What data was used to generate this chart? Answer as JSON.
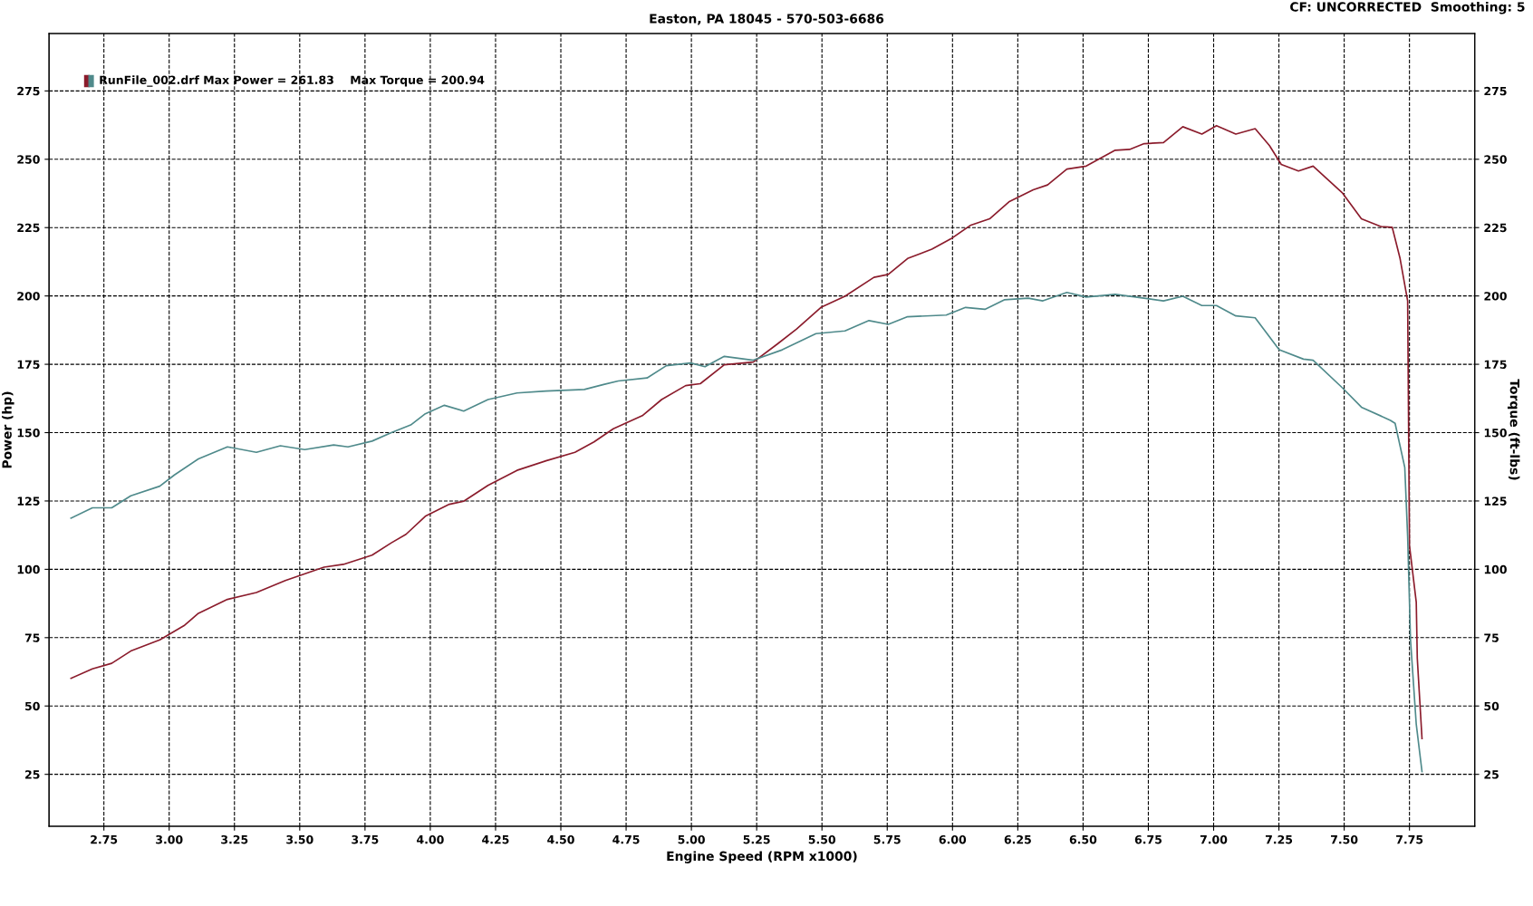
{
  "chart_data": {
    "type": "line",
    "subtitle": "Easton, PA 18045 - 570-503-6686",
    "xlabel": "Engine Speed (RPM x1000)",
    "ylabel": "Power (hp)",
    "y2label": "Torque (ft-lbs)",
    "annotations": [
      "CF: UNCORRECTED  Smoothing: 5",
      "RunFile_002.drf Max Power = 261.83    Max Torque = 200.94"
    ],
    "xlim": [
      2.54,
      8.0
    ],
    "ylim": [
      6,
      296
    ],
    "y2lim": [
      6,
      296
    ],
    "xticks": [
      {
        "value": 2.75,
        "label": "2.75"
      },
      {
        "value": 3.0,
        "label": "3.00"
      },
      {
        "value": 3.25,
        "label": "3.25"
      },
      {
        "value": 3.5,
        "label": "3.50"
      },
      {
        "value": 3.75,
        "label": "3.75"
      },
      {
        "value": 4.0,
        "label": "4.00"
      },
      {
        "value": 4.25,
        "label": "4.25"
      },
      {
        "value": 4.5,
        "label": "4.50"
      },
      {
        "value": 4.75,
        "label": "4.75"
      },
      {
        "value": 5.0,
        "label": "5.00"
      },
      {
        "value": 5.25,
        "label": "5.25"
      },
      {
        "value": 5.5,
        "label": "5.50"
      },
      {
        "value": 5.75,
        "label": "5.75"
      },
      {
        "value": 6.0,
        "label": "6.00"
      },
      {
        "value": 6.25,
        "label": "6.25"
      },
      {
        "value": 6.5,
        "label": "6.50"
      },
      {
        "value": 6.75,
        "label": "6.75"
      },
      {
        "value": 7.0,
        "label": "7.00"
      },
      {
        "value": 7.25,
        "label": "7.25"
      },
      {
        "value": 7.5,
        "label": "7.50"
      },
      {
        "value": 7.75,
        "label": "7.75"
      }
    ],
    "yticks": [
      25,
      50,
      75,
      100,
      125,
      150,
      175,
      200,
      225,
      250,
      275
    ],
    "y2ticks": [
      25,
      50,
      75,
      100,
      125,
      150,
      175,
      200,
      225,
      250,
      275
    ],
    "grid": true,
    "line_style": "solid",
    "marker": "none",
    "series": [
      {
        "color": "#8b1c2c",
        "axis": "y",
        "x": [
          2.624,
          2.706,
          2.78,
          2.853,
          2.964,
          3.057,
          3.112,
          3.223,
          3.334,
          3.445,
          3.593,
          3.667,
          3.777,
          3.851,
          3.907,
          3.981,
          4.073,
          4.128,
          4.221,
          4.332,
          4.443,
          4.554,
          4.627,
          4.701,
          4.812,
          4.886,
          4.978,
          5.034,
          5.126,
          5.237,
          5.329,
          5.403,
          5.496,
          5.588,
          5.699,
          5.754,
          5.828,
          5.921,
          5.994,
          6.068,
          6.142,
          6.216,
          6.309,
          6.364,
          6.438,
          6.512,
          6.623,
          6.678,
          6.734,
          6.808,
          6.882,
          6.955,
          7.011,
          7.085,
          7.159,
          7.214,
          7.259,
          7.325,
          7.381,
          7.492,
          7.566,
          7.64,
          7.684,
          7.714,
          7.743,
          7.75,
          7.776,
          7.78,
          7.798
        ],
        "values": [
          60.1,
          63.6,
          65.6,
          70.1,
          74.2,
          79.4,
          83.9,
          89.0,
          91.5,
          95.9,
          100.8,
          101.8,
          105.2,
          109.7,
          112.8,
          119.4,
          123.8,
          124.9,
          130.7,
          136.2,
          139.7,
          142.8,
          146.6,
          151.4,
          156.2,
          162.1,
          167.2,
          167.9,
          174.8,
          175.8,
          182.4,
          187.9,
          195.8,
          199.9,
          206.8,
          207.9,
          213.7,
          217.1,
          220.9,
          225.8,
          228.2,
          234.4,
          238.8,
          240.6,
          246.4,
          247.5,
          253.3,
          253.6,
          255.7,
          256.1,
          261.9,
          259.2,
          262.3,
          259.2,
          261.2,
          255.0,
          248.1,
          245.7,
          247.5,
          237.8,
          228.2,
          225.4,
          225.1,
          213.7,
          198.2,
          108.7,
          88.0,
          67.4,
          38.1
        ]
      },
      {
        "color": "#4f8a8b",
        "axis": "y2",
        "x": [
          2.624,
          2.706,
          2.78,
          2.853,
          2.964,
          3.02,
          3.112,
          3.223,
          3.334,
          3.426,
          3.519,
          3.63,
          3.685,
          3.777,
          3.851,
          3.925,
          3.981,
          4.054,
          4.128,
          4.221,
          4.332,
          4.443,
          4.59,
          4.664,
          4.72,
          4.83,
          4.904,
          4.997,
          5.052,
          5.126,
          5.237,
          5.348,
          5.477,
          5.588,
          5.68,
          5.754,
          5.828,
          5.976,
          6.05,
          6.124,
          6.198,
          6.29,
          6.346,
          6.438,
          6.512,
          6.623,
          6.734,
          6.808,
          6.882,
          6.955,
          7.011,
          7.085,
          7.159,
          7.251,
          7.344,
          7.381,
          7.492,
          7.566,
          7.677,
          7.695,
          7.732,
          7.743,
          7.754,
          7.776,
          7.798
        ],
        "values": [
          118.7,
          122.5,
          122.5,
          126.9,
          130.4,
          134.5,
          140.4,
          144.8,
          142.8,
          145.2,
          143.8,
          145.5,
          144.8,
          146.9,
          150.0,
          152.8,
          156.9,
          160.0,
          157.9,
          162.1,
          164.5,
          165.2,
          165.8,
          167.6,
          168.9,
          170.0,
          174.5,
          175.5,
          174.1,
          177.9,
          176.5,
          180.3,
          186.2,
          187.2,
          191.0,
          189.6,
          192.4,
          193.0,
          195.8,
          195.1,
          198.6,
          199.2,
          198.2,
          201.3,
          199.6,
          200.6,
          199.2,
          198.2,
          199.9,
          196.5,
          196.5,
          192.7,
          192.0,
          180.3,
          176.9,
          176.5,
          166.5,
          159.3,
          154.5,
          153.4,
          137.3,
          112.1,
          74.2,
          43.3,
          26.0
        ]
      }
    ]
  }
}
